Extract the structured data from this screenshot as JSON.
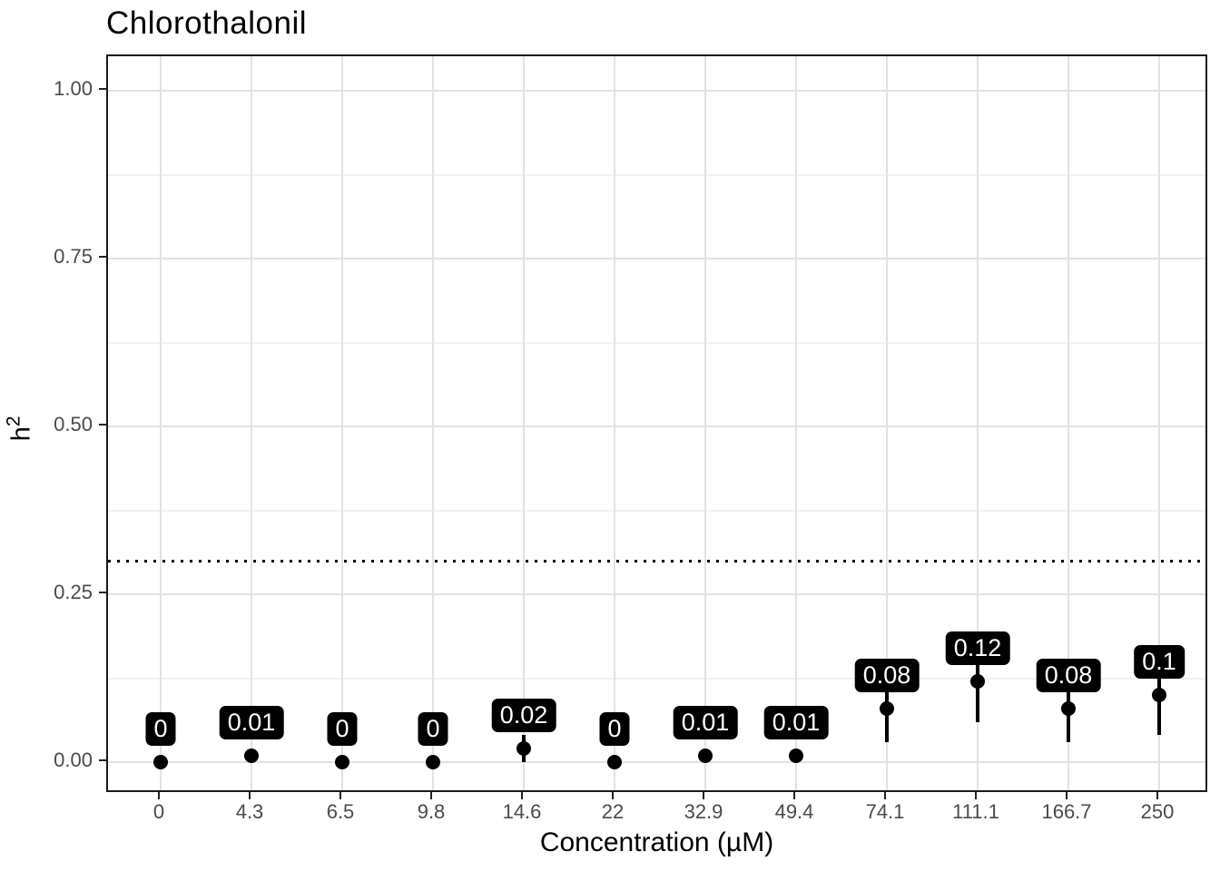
{
  "chart_data": {
    "type": "scatter",
    "subtype": "pointrange-with-labels",
    "title": "Chlorothalonil",
    "xlabel": "Concentration (µM)",
    "ylabel": "h²",
    "ylabel_parts": {
      "base": "h",
      "sup": "2"
    },
    "categories": [
      "0",
      "4.3",
      "6.5",
      "9.8",
      "14.6",
      "22",
      "32.9",
      "49.4",
      "74.1",
      "111.1",
      "166.7",
      "250"
    ],
    "values": [
      0,
      0.01,
      0,
      0,
      0.02,
      0,
      0.01,
      0.01,
      0.08,
      0.12,
      0.08,
      0.1
    ],
    "point_labels": [
      "0",
      "0.01",
      "0",
      "0",
      "0.02",
      "0",
      "0.01",
      "0.01",
      "0.08",
      "0.12",
      "0.08",
      "0.1"
    ],
    "error_bars": [
      null,
      null,
      null,
      null,
      [
        0,
        0.04
      ],
      null,
      null,
      null,
      [
        0.03,
        0.14
      ],
      [
        0.06,
        0.19
      ],
      [
        0.03,
        0.12
      ],
      [
        0.04,
        0.16
      ]
    ],
    "reference_line": {
      "y": 0.3,
      "style": "dotted",
      "color": "#000000"
    },
    "y_ticks": [
      {
        "v": 0,
        "label": "0.00"
      },
      {
        "v": 0.25,
        "label": "0.25"
      },
      {
        "v": 0.5,
        "label": "0.50"
      },
      {
        "v": 0.75,
        "label": "0.75"
      },
      {
        "v": 1.0,
        "label": "1.00"
      }
    ],
    "y_minor": [
      0.125,
      0.375,
      0.625,
      0.875
    ],
    "ylim": [
      -0.047,
      1.052
    ],
    "grid": "major-and-minor-horizontal, major-vertical-per-category",
    "legend": "none",
    "colors": {
      "point": "#000000",
      "error_bar": "#000000",
      "label_bg": "#000000",
      "label_text": "#ffffff",
      "grid_major": "#e2e2e2",
      "grid_minor": "#f1f1f1",
      "panel_border": "#1a1a1a",
      "tick_label": "#4a4a4a",
      "title": "#000000",
      "background": "#ffffff"
    }
  }
}
